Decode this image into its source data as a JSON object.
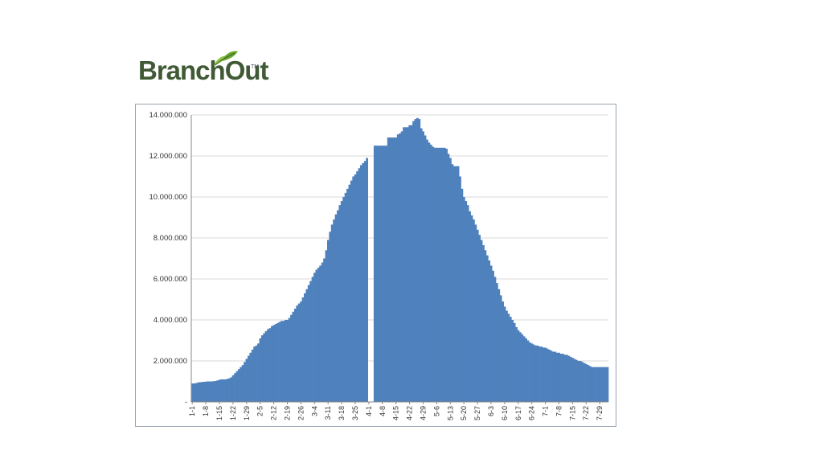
{
  "logo": {
    "text": "BranchOut",
    "tm": "TM"
  },
  "colors": {
    "bar": "#4f81bd",
    "grid": "#d9d9d9",
    "axis": "#888888",
    "logo": "#3f5a35"
  },
  "chart_data": {
    "type": "area",
    "title": "",
    "xlabel": "",
    "ylabel": "",
    "ylim": [
      0,
      14000000
    ],
    "grid": true,
    "legend": "none",
    "y_ticks": [
      {
        "value": 0,
        "label": "-"
      },
      {
        "value": 2000000,
        "label": "2.000.000"
      },
      {
        "value": 4000000,
        "label": "4.000.000"
      },
      {
        "value": 6000000,
        "label": "6.000.000"
      },
      {
        "value": 8000000,
        "label": "8.000.000"
      },
      {
        "value": 10000000,
        "label": "10.000.000"
      },
      {
        "value": 12000000,
        "label": "12.000.000"
      },
      {
        "value": 14000000,
        "label": "14.000.000"
      }
    ],
    "x_ticks": [
      "1-1",
      "1-8",
      "1-15",
      "1-22",
      "1-29",
      "2-5",
      "2-12",
      "2-19",
      "2-26",
      "3-4",
      "3-11",
      "3-18",
      "3-25",
      "4-1",
      "4-8",
      "4-15",
      "4-22",
      "4-29",
      "5-6",
      "5-13",
      "5-20",
      "5-27",
      "6-3",
      "6-10",
      "6-17",
      "6-24",
      "7-1",
      "7-8",
      "7-15",
      "7-22",
      "7-29"
    ],
    "gap_at_day": 91,
    "series": [
      {
        "values": [
          900000,
          900000,
          920000,
          950000,
          960000,
          970000,
          980000,
          990000,
          1000000,
          1000000,
          1000000,
          1010000,
          1020000,
          1050000,
          1080000,
          1100000,
          1100000,
          1100000,
          1120000,
          1150000,
          1200000,
          1300000,
          1400000,
          1500000,
          1600000,
          1700000,
          1800000,
          1950000,
          2100000,
          2250000,
          2400000,
          2550000,
          2700000,
          2750000,
          2850000,
          3100000,
          3250000,
          3350000,
          3450000,
          3550000,
          3600000,
          3700000,
          3750000,
          3800000,
          3850000,
          3900000,
          3950000,
          3950000,
          4000000,
          4000000,
          4100000,
          4250000,
          4400000,
          4550000,
          4700000,
          4800000,
          4900000,
          5100000,
          5300000,
          5500000,
          5700000,
          5900000,
          6100000,
          6300000,
          6450000,
          6550000,
          6650000,
          6800000,
          7000000,
          7400000,
          7900000,
          8300000,
          8650000,
          8900000,
          9150000,
          9350000,
          9600000,
          9800000,
          10000000,
          10200000,
          10400000,
          10600000,
          10800000,
          11000000,
          11100000,
          11250000,
          11400000,
          11550000,
          11650000,
          11750000,
          11900000,
          0,
          0,
          0,
          12500000,
          12500000,
          12500000,
          12500000,
          12500000,
          12500000,
          12500000,
          12900000,
          12900000,
          12900000,
          12900000,
          12900000,
          13050000,
          13100000,
          13200000,
          13400000,
          13400000,
          13400000,
          13500000,
          13500000,
          13700000,
          13800000,
          13850000,
          13800000,
          13350000,
          13200000,
          13000000,
          12800000,
          12650000,
          12550000,
          12450000,
          12400000,
          12400000,
          12400000,
          12400000,
          12400000,
          12400000,
          12350000,
          12100000,
          11900000,
          11600000,
          11500000,
          11500000,
          11500000,
          11000000,
          10400000,
          10000000,
          9800000,
          9600000,
          9300000,
          9100000,
          8900000,
          8650000,
          8400000,
          8150000,
          7900000,
          7650000,
          7400000,
          7150000,
          6900000,
          6650000,
          6400000,
          6100000,
          5800000,
          5500000,
          5200000,
          4900000,
          4650000,
          4450000,
          4300000,
          4150000,
          4000000,
          3850000,
          3650000,
          3500000,
          3400000,
          3300000,
          3200000,
          3100000,
          3000000,
          2900000,
          2850000,
          2800000,
          2750000,
          2750000,
          2700000,
          2700000,
          2650000,
          2650000,
          2600000,
          2550000,
          2500000,
          2450000,
          2450000,
          2400000,
          2400000,
          2350000,
          2350000,
          2300000,
          2300000,
          2250000,
          2200000,
          2150000,
          2100000,
          2050000,
          2000000,
          2000000,
          1950000,
          1900000,
          1850000,
          1800000,
          1750000,
          1700000,
          1700000,
          1700000,
          1700000,
          1700000,
          1700000,
          1700000,
          1700000,
          1700000
        ]
      }
    ]
  }
}
